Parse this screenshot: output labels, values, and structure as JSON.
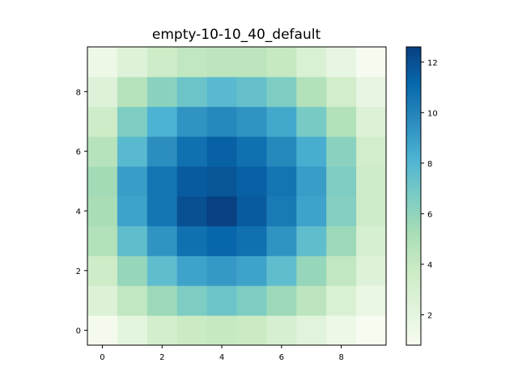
{
  "chart_data": {
    "type": "heatmap",
    "title": "empty-10-10_40_default",
    "xlabel": "",
    "ylabel": "",
    "x_ticks": [
      "0",
      "2",
      "4",
      "6",
      "8"
    ],
    "y_ticks": [
      "0",
      "2",
      "4",
      "6",
      "8"
    ],
    "xlim": [
      -0.5,
      9.5
    ],
    "ylim": [
      -0.5,
      9.5
    ],
    "origin": "lower",
    "colormap": "GnBu",
    "colorbar": {
      "min": 0.8,
      "max": 12.6,
      "ticks": [
        "2",
        "4",
        "6",
        "8",
        "10",
        "12"
      ]
    },
    "rows_bottom_to_top": [
      [
        1.0,
        2.0,
        3.2,
        3.8,
        4.0,
        3.8,
        3.0,
        2.2,
        1.4,
        0.8
      ],
      [
        2.6,
        4.2,
        5.6,
        6.6,
        7.2,
        6.6,
        5.6,
        4.4,
        2.8,
        1.6
      ],
      [
        3.6,
        5.8,
        7.6,
        8.8,
        9.2,
        8.8,
        7.6,
        5.8,
        4.2,
        2.4
      ],
      [
        4.8,
        7.6,
        9.4,
        10.8,
        11.2,
        10.8,
        9.4,
        7.6,
        5.6,
        3.0
      ],
      [
        5.2,
        8.8,
        10.6,
        12.0,
        12.6,
        11.6,
        10.4,
        8.8,
        6.4,
        3.6
      ],
      [
        5.4,
        9.0,
        10.6,
        11.6,
        11.8,
        11.4,
        10.6,
        9.0,
        6.6,
        3.6
      ],
      [
        4.6,
        7.8,
        9.6,
        10.8,
        11.4,
        10.8,
        9.8,
        8.4,
        6.2,
        3.4
      ],
      [
        3.6,
        6.6,
        8.2,
        9.4,
        9.8,
        9.4,
        8.6,
        6.8,
        4.8,
        2.6
      ],
      [
        2.4,
        4.6,
        6.2,
        7.2,
        7.8,
        7.4,
        6.6,
        4.8,
        3.4,
        1.8
      ],
      [
        1.4,
        2.4,
        3.6,
        4.2,
        4.4,
        4.4,
        4.0,
        2.8,
        1.8,
        0.9
      ]
    ]
  }
}
